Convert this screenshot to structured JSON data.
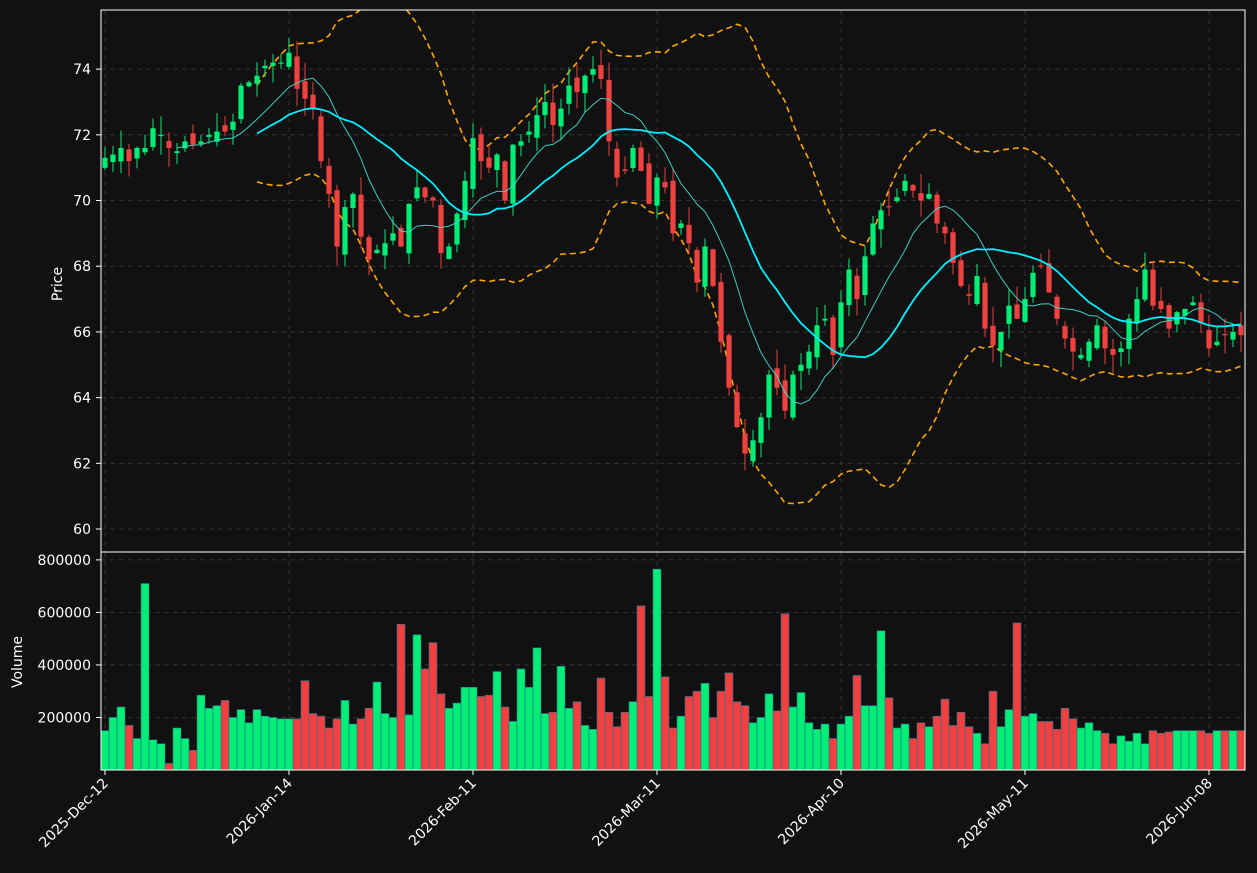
{
  "chart_data": {
    "type": "candlestick",
    "panels": [
      "price",
      "volume"
    ],
    "ylabel_price": "Price",
    "ylabel_volume": "Volume",
    "price_ylim": [
      59.3,
      75.8
    ],
    "price_yticks": [
      "60",
      "62",
      "64",
      "66",
      "68",
      "70",
      "72",
      "74"
    ],
    "price_ytick_values": [
      60,
      62,
      64,
      66,
      68,
      70,
      72,
      74
    ],
    "volume_ylim": [
      0,
      830000
    ],
    "volume_yticks": [
      "200000",
      "400000",
      "600000",
      "800000"
    ],
    "volume_ytick_values": [
      200000,
      400000,
      600000,
      800000
    ],
    "x_tick_labels": [
      "2025-Dec-12",
      "2026-Jan-14",
      "2026-Feb-11",
      "2026-Mar-11",
      "2026-Apr-10",
      "2026-May-11",
      "2026-Jun-08"
    ],
    "x_tick_indices": [
      0,
      23,
      46,
      69,
      92,
      115,
      138
    ],
    "num_bars": 143,
    "grid": true,
    "colors": {
      "up": "#00ee76",
      "down": "#f04040",
      "background": "#111111",
      "ma_long": "#00f0ff",
      "ma_short": "#40e0d0",
      "bands": "#ffa500",
      "grid": "#555555",
      "text": "#ffffff"
    },
    "closes": [
      71.3,
      71.4,
      71.6,
      71.2,
      71.6,
      71.6,
      72.2,
      72.0,
      71.6,
      71.5,
      71.8,
      71.7,
      71.8,
      72.0,
      72.1,
      72.1,
      72.4,
      73.5,
      73.6,
      73.8,
      74.1,
      74.2,
      74.2,
      74.5,
      73.4,
      73.1,
      72.8,
      71.2,
      70.2,
      68.6,
      69.8,
      70.2,
      68.9,
      68.2,
      68.5,
      68.7,
      69.0,
      68.6,
      69.9,
      70.4,
      70.1,
      70.0,
      68.4,
      68.6,
      69.6,
      70.6,
      71.9,
      71.2,
      71.0,
      71.4,
      70.0,
      71.7,
      71.8,
      72.1,
      72.6,
      73.0,
      72.3,
      72.8,
      73.5,
      73.3,
      73.8,
      74.0,
      73.7,
      71.8,
      70.7,
      70.9,
      71.6,
      70.9,
      69.9,
      70.7,
      70.4,
      69.0,
      69.3,
      68.7,
      67.5,
      68.6,
      67.4,
      65.7,
      64.3,
      63.1,
      62.3,
      62.7,
      63.4,
      64.7,
      64.3,
      63.6,
      64.7,
      65.0,
      65.4,
      66.2,
      66.4,
      65.3,
      66.9,
      67.9,
      67.0,
      68.3,
      69.3,
      69.7,
      69.8,
      70.1,
      70.6,
      70.3,
      70.0,
      70.2,
      69.3,
      69.0,
      68.1,
      67.4,
      67.1,
      67.7,
      66.1,
      65.6,
      66.0,
      66.8,
      66.4,
      67.0,
      67.8,
      68.0,
      67.2,
      66.4,
      65.8,
      65.4,
      65.3,
      65.7,
      66.2,
      65.5,
      65.3,
      65.5,
      66.4,
      67.0,
      67.9,
      66.8,
      66.7,
      66.1,
      66.6,
      66.7,
      66.9,
      66.3,
      65.5,
      65.7,
      65.9,
      66.0,
      65.9
    ],
    "volumes": [
      150000,
      200000,
      240000,
      170000,
      120000,
      710000,
      115000,
      100000,
      25000,
      160000,
      120000,
      75000,
      285000,
      235000,
      245000,
      265000,
      200000,
      230000,
      180000,
      230000,
      205000,
      200000,
      195000,
      195000,
      195000,
      340000,
      215000,
      205000,
      160000,
      195000,
      265000,
      175000,
      195000,
      235000,
      335000,
      215000,
      200000,
      555000,
      210000,
      515000,
      385000,
      485000,
      290000,
      235000,
      255000,
      315000,
      315000,
      280000,
      285000,
      375000,
      240000,
      185000,
      385000,
      315000,
      465000,
      215000,
      220000,
      395000,
      235000,
      260000,
      170000,
      155000,
      350000,
      220000,
      165000,
      220000,
      260000,
      625000,
      280000,
      765000,
      355000,
      160000,
      205000,
      280000,
      300000,
      330000,
      200000,
      300000,
      370000,
      260000,
      245000,
      180000,
      200000,
      290000,
      225000,
      595000,
      240000,
      295000,
      180000,
      155000,
      175000,
      120000,
      175000,
      205000,
      360000,
      245000,
      245000,
      530000,
      275000,
      160000,
      175000,
      120000,
      180000,
      165000,
      205000,
      270000,
      170000,
      220000,
      165000,
      140000,
      100000,
      300000,
      165000,
      230000,
      560000,
      205000,
      215000,
      185000,
      185000,
      155000,
      235000,
      195000,
      160000,
      180000,
      150000,
      140000,
      100000,
      130000,
      110000,
      140000,
      100000,
      150000,
      140000,
      145000,
      150000,
      150000,
      150000,
      150000,
      140000,
      150000,
      150000,
      150000,
      150000
    ]
  }
}
